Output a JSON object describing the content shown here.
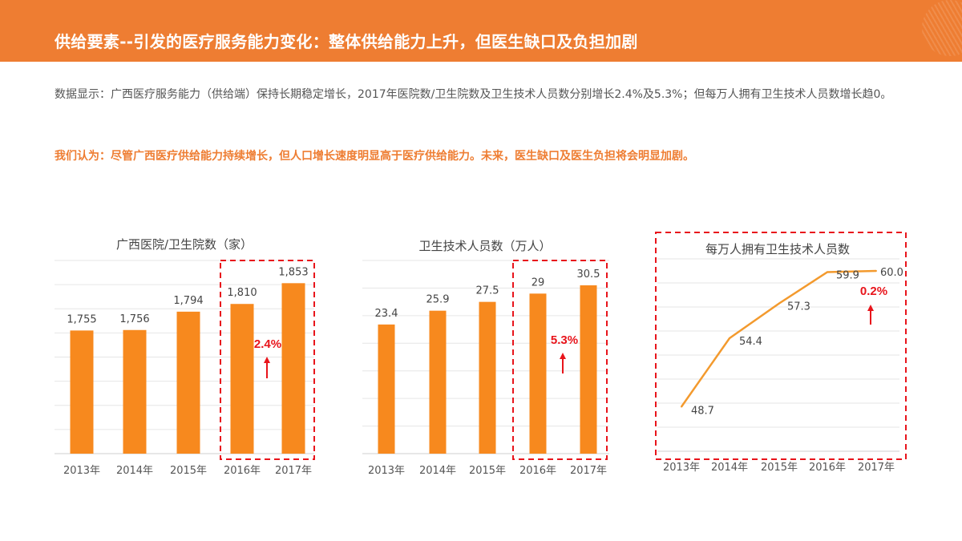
{
  "header": {
    "title": "供给要素--引发的医疗服务能力变化：整体供给能力上升，但医生缺口及负担加剧"
  },
  "body": {
    "description": "数据显示：广西医疗服务能力（供给端）保持长期稳定增长，2017年医院数/卫生院数及卫生技术人员数分别增长2.4%及5.3%；但每万人拥有卫生技术人员数增长趋0。",
    "opinion": "我们认为：尽管广西医疗供给能力持续增长，但人口增长速度明显高于医疗供给能力。未来，医生缺口及医生负担将会明显加剧。"
  },
  "colors": {
    "header": "#EE7D32",
    "bar": "#F7891E",
    "line": "#F39A2E",
    "highlight": "#E8141B",
    "text": "#555555"
  },
  "chart_data": [
    {
      "type": "bar",
      "title": "广西医院/卫生院数（家）",
      "categories": [
        "2013年",
        "2014年",
        "2015年",
        "2016年",
        "2017年"
      ],
      "values": [
        1755,
        1756,
        1794,
        1810,
        1853
      ],
      "value_labels": [
        "1,755",
        "1,756",
        "1,794",
        "1,810",
        "1,853"
      ],
      "ylim": [
        1500,
        1900
      ],
      "grid": true,
      "highlight": {
        "categories": [
          "2016年",
          "2017年"
        ],
        "growth_label": "2.4%",
        "arrow": "up"
      }
    },
    {
      "type": "bar",
      "title": "卫生技术人员数（万人）",
      "categories": [
        "2013年",
        "2014年",
        "2015年",
        "2016年",
        "2017年"
      ],
      "values": [
        23.4,
        25.9,
        27.5,
        29,
        30.5
      ],
      "value_labels": [
        "23.4",
        "25.9",
        "27.5",
        "29",
        "30.5"
      ],
      "ylim": [
        0,
        35
      ],
      "grid": true,
      "highlight": {
        "categories": [
          "2016年",
          "2017年"
        ],
        "growth_label": "5.3%",
        "arrow": "up"
      }
    },
    {
      "type": "line",
      "title": "每万人拥有卫生技术人员数",
      "categories": [
        "2013年",
        "2014年",
        "2015年",
        "2016年",
        "2017年"
      ],
      "values": [
        48.7,
        54.4,
        57.3,
        59.9,
        60.0
      ],
      "value_labels": [
        "48.7",
        "54.4",
        "57.3",
        "59.9",
        "60.0"
      ],
      "ylim": [
        45,
        61
      ],
      "grid": true,
      "highlight": {
        "growth_label": "0.2%",
        "arrow": "up",
        "boxed": "whole chart"
      }
    }
  ]
}
